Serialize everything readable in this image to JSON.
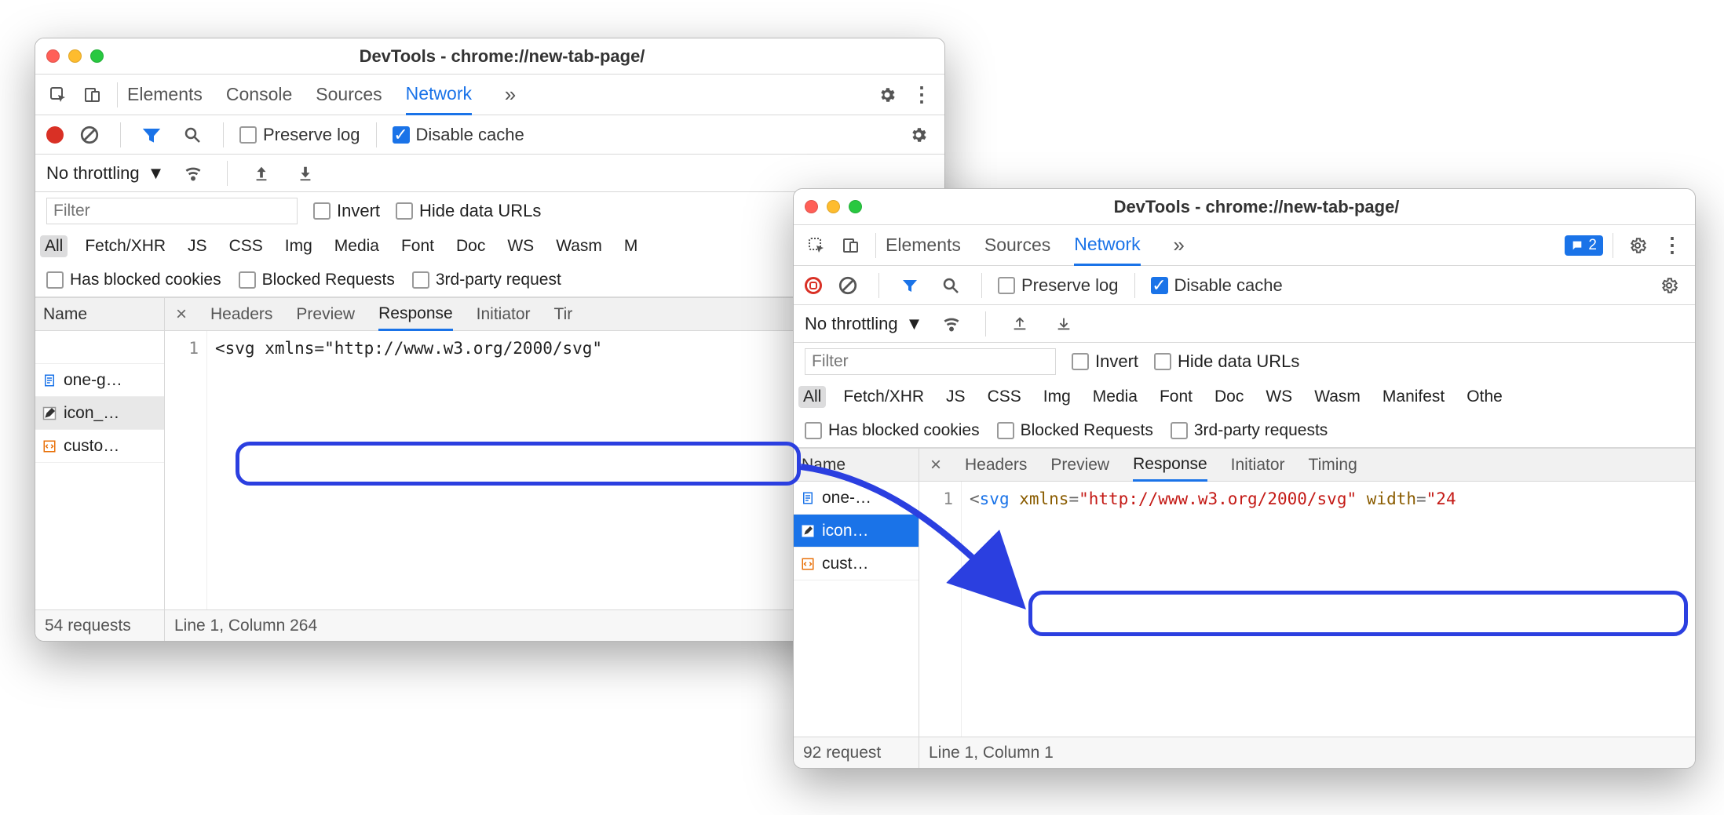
{
  "window1": {
    "title": "DevTools - chrome://new-tab-page/",
    "tabs": [
      "Elements",
      "Console",
      "Sources",
      "Network"
    ],
    "active_tab": "Network",
    "toolbar": {
      "preserve_log": "Preserve log",
      "disable_cache": "Disable cache"
    },
    "throttling": "No throttling",
    "filter_placeholder": "Filter",
    "filter_opts": {
      "invert": "Invert",
      "hide": "Hide data URLs"
    },
    "chips": [
      "All",
      "Fetch/XHR",
      "JS",
      "CSS",
      "Img",
      "Media",
      "Font",
      "Doc",
      "WS",
      "Wasm",
      "M"
    ],
    "checkrow": {
      "blocked": "Has blocked cookies",
      "blockedreq": "Blocked Requests",
      "third": "3rd-party request"
    },
    "name_header": "Name",
    "detail_tabs": [
      "Headers",
      "Preview",
      "Response",
      "Initiator",
      "Tir"
    ],
    "detail_active": "Response",
    "files": [
      {
        "icon": "doc",
        "label": "one-g…"
      },
      {
        "icon": "pencil",
        "label": "icon_…",
        "selected": true
      },
      {
        "icon": "code",
        "label": "custo…"
      }
    ],
    "gutter": "1",
    "code_plain": "<svg xmlns=\"http://www.w3.org/2000/svg\"",
    "status_left": "54 requests",
    "status_right": "Line 1, Column 264"
  },
  "window2": {
    "title": "DevTools - chrome://new-tab-page/",
    "tabs": [
      "Elements",
      "Sources",
      "Network"
    ],
    "active_tab": "Network",
    "msg_count": "2",
    "toolbar": {
      "preserve_log": "Preserve log",
      "disable_cache": "Disable cache"
    },
    "throttling": "No throttling",
    "filter_placeholder": "Filter",
    "filter_opts": {
      "invert": "Invert",
      "hide": "Hide data URLs"
    },
    "chips": [
      "All",
      "Fetch/XHR",
      "JS",
      "CSS",
      "Img",
      "Media",
      "Font",
      "Doc",
      "WS",
      "Wasm",
      "Manifest",
      "Othe"
    ],
    "checkrow": {
      "blocked": "Has blocked cookies",
      "blockedreq": "Blocked Requests",
      "third": "3rd-party requests"
    },
    "name_header": "Name",
    "detail_tabs": [
      "Headers",
      "Preview",
      "Response",
      "Initiator",
      "Timing"
    ],
    "detail_active": "Response",
    "files": [
      {
        "icon": "doc",
        "label": "one-…"
      },
      {
        "icon": "pencil",
        "label": "icon…",
        "selected": true
      },
      {
        "icon": "code",
        "label": "cust…"
      }
    ],
    "gutter": "1",
    "code_tokens": [
      {
        "t": "op",
        "v": "<"
      },
      {
        "t": "tag",
        "v": "svg "
      },
      {
        "t": "attr",
        "v": "xmlns"
      },
      {
        "t": "op",
        "v": "="
      },
      {
        "t": "str",
        "v": "\"http://www.w3.org/2000/svg\""
      },
      {
        "t": "tag",
        "v": " "
      },
      {
        "t": "attr",
        "v": "width"
      },
      {
        "t": "op",
        "v": "="
      },
      {
        "t": "str",
        "v": "\"24"
      }
    ],
    "status_left": "92 request",
    "status_right": "Line 1, Column 1"
  }
}
